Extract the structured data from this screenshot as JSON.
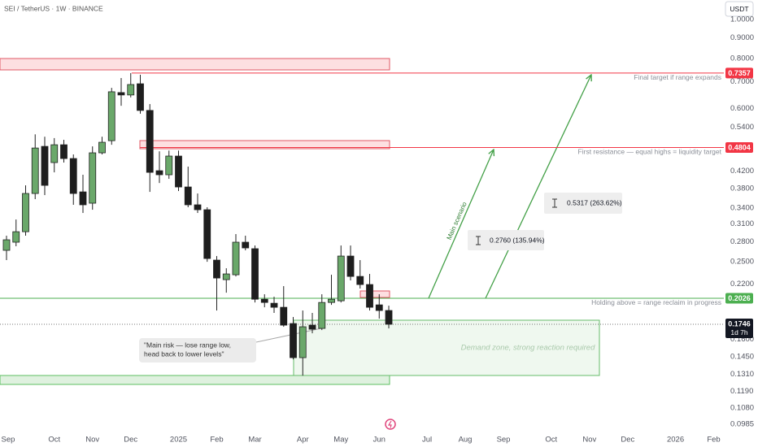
{
  "header": {
    "symbol": "SEI / TetherUS · 1W · BINANCE",
    "currency": "USDT"
  },
  "chart_data": {
    "type": "candlestick",
    "scale": "log",
    "up_color": "#6aa86a",
    "down_color": "#1e1e1e",
    "border_color": "#222222",
    "open": [
      0.2666,
      0.2793,
      0.2966,
      0.3692,
      0.4835,
      0.4407,
      0.488,
      0.451,
      0.3726,
      0.3492,
      0.466,
      0.4995,
      0.658,
      0.649,
      0.692,
      0.594,
      0.4206,
      0.411,
      0.4574,
      0.3832,
      0.346,
      0.3364,
      0.2521,
      0.2254,
      0.2318,
      0.2793,
      0.2691,
      0.2015,
      0.1969,
      0.1924,
      0.1753,
      0.1442,
      0.1737,
      0.1705,
      0.1978,
      0.1997,
      0.258,
      0.2296,
      0.2192,
      0.1951,
      0.1889
    ],
    "high": [
      0.2899,
      0.3181,
      0.3868,
      0.518,
      0.511,
      0.507,
      0.502,
      0.4617,
      0.411,
      0.4835,
      0.511,
      0.676,
      0.7152,
      0.7357,
      0.7287,
      0.616,
      0.47,
      0.472,
      0.472,
      0.4306,
      0.3692,
      0.3412,
      0.258,
      0.2406,
      0.2926,
      0.2899,
      0.2741,
      0.2073,
      0.2044,
      0.2172,
      0.182,
      0.1889,
      0.1863,
      0.2073,
      0.2318,
      0.2741,
      0.2741,
      0.2521,
      0.2329,
      0.2073,
      0.1942
    ],
    "low": [
      0.2521,
      0.2729,
      0.2899,
      0.3574,
      0.3658,
      0.4167,
      0.4407,
      0.346,
      0.3302,
      0.3364,
      0.4617,
      0.488,
      0.61,
      0.64,
      0.583,
      0.3726,
      0.392,
      0.4015,
      0.3744,
      0.3412,
      0.3302,
      0.2497,
      0.1889,
      0.2092,
      0.2296,
      0.2666,
      0.1978,
      0.1924,
      0.1863,
      0.1721,
      0.1428,
      0.1301,
      0.1658,
      0.1689,
      0.1951,
      0.1978,
      0.2244,
      0.2142,
      0.1889,
      0.1803,
      0.1705
    ],
    "close": [
      0.2832,
      0.2966,
      0.3692,
      0.479,
      0.3868,
      0.488,
      0.451,
      0.3692,
      0.346,
      0.466,
      0.495,
      0.661,
      0.649,
      0.689,
      0.594,
      0.4167,
      0.411,
      0.4574,
      0.3832,
      0.346,
      0.3364,
      0.2544,
      0.2275,
      0.2329,
      0.2793,
      0.2703,
      0.2015,
      0.1978,
      0.1924,
      0.1737,
      0.1442,
      0.1721,
      0.1697,
      0.1978,
      0.2015,
      0.258,
      0.2296,
      0.2192,
      0.1924,
      0.1889,
      0.1746
    ],
    "xlim": [
      -0.68,
      75.06
    ],
    "xticks": [
      {
        "value": 0,
        "label": "Sep"
      },
      {
        "value": 5,
        "label": "Oct"
      },
      {
        "value": 9,
        "label": "Nov"
      },
      {
        "value": 13,
        "label": "Dec"
      },
      {
        "value": 18,
        "label": "2025"
      },
      {
        "value": 22,
        "label": "Feb"
      },
      {
        "value": 26,
        "label": "Mar"
      },
      {
        "value": 31,
        "label": "Apr"
      },
      {
        "value": 35,
        "label": "May"
      },
      {
        "value": 39,
        "label": "Jun"
      },
      {
        "value": 44,
        "label": "Jul"
      },
      {
        "value": 48,
        "label": "Aug"
      },
      {
        "value": 52,
        "label": "Sep"
      },
      {
        "value": 57,
        "label": "Oct"
      },
      {
        "value": 61,
        "label": "Nov"
      },
      {
        "value": 65,
        "label": "Dec"
      },
      {
        "value": 70,
        "label": "2026"
      },
      {
        "value": 74,
        "label": "Feb"
      }
    ],
    "ylim": [
      0.094,
      1.118
    ],
    "yticks": [
      {
        "value": 1,
        "label": "1.0000"
      },
      {
        "value": 0.9,
        "label": "0.9000"
      },
      {
        "value": 0.8,
        "label": "0.8000"
      },
      {
        "value": 0.7,
        "label": "0.7000"
      },
      {
        "value": 0.6,
        "label": "0.6000"
      },
      {
        "value": 0.54,
        "label": "0.5400"
      },
      {
        "value": 0.42,
        "label": "0.4200"
      },
      {
        "value": 0.38,
        "label": "0.3800"
      },
      {
        "value": 0.34,
        "label": "0.3400"
      },
      {
        "value": 0.31,
        "label": "0.3100"
      },
      {
        "value": 0.28,
        "label": "0.2800"
      },
      {
        "value": 0.25,
        "label": "0.2500"
      },
      {
        "value": 0.22,
        "label": "0.2200"
      },
      {
        "value": 0.16,
        "label": "0.1600"
      },
      {
        "value": 0.145,
        "label": "0.1450"
      },
      {
        "value": 0.131,
        "label": "0.1310"
      },
      {
        "value": 0.119,
        "label": "0.1190"
      },
      {
        "value": 0.108,
        "label": "0.1080"
      },
      {
        "value": 0.0985,
        "label": "0.0985"
      }
    ],
    "levels": [
      {
        "value": 0.7357,
        "start": 13.1,
        "note": "Final target if range expands",
        "color": "#f23645"
      },
      {
        "value": 0.4804,
        "start": 14,
        "note": "First resistance — equal highs = liquidity target",
        "color": "#f23645"
      },
      {
        "value": 0.2026,
        "note": "Holding above = range reclaim in progress",
        "color": "#4caf50"
      }
    ],
    "last": {
      "value": 0.1746,
      "countdown": "1d 7h"
    },
    "annotations": {
      "arrow": "Main scenario",
      "measures": [
        "0.2760 (135.94%)",
        "0.5317 (263.62%)"
      ],
      "callout": [
        "\"Main risk — lose range low,",
        "head back to lower levels\""
      ],
      "zone": "Demand zone, strong reaction required"
    }
  }
}
